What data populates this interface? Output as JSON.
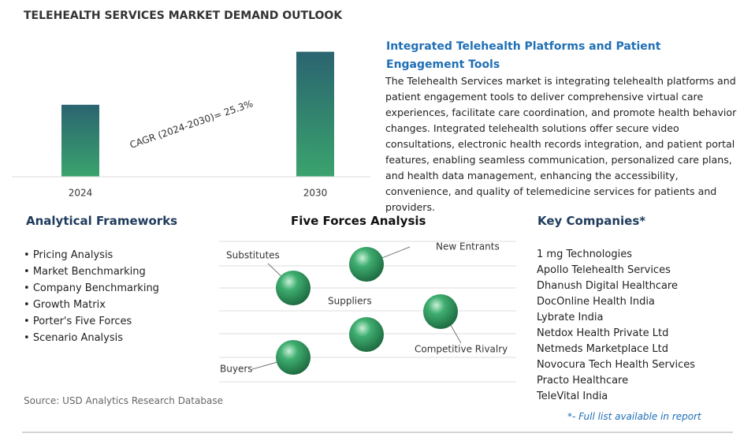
{
  "header": {
    "title": "TELEHEALTH SERVICES MARKET DEMAND OUTLOOK"
  },
  "chart_data": {
    "type": "bar",
    "categories": [
      "2024",
      "2030"
    ],
    "values": [
      57,
      99
    ],
    "ylim": [
      0,
      100
    ],
    "annotation": "CAGR (2024-2030)=  25.3%"
  },
  "highlight": {
    "heading": "Integrated Telehealth Platforms and Patient Engagement Tools",
    "text": "The Telehealth Services market is integrating telehealth platforms and patient engagement tools to deliver comprehensive virtual care experiences, facilitate care coordination, and promote health behavior changes. Integrated telehealth solutions offer secure video consultations, electronic health records integration, and patient portal features, enabling seamless communication, personalized care plans, and health data management, enhancing the accessibility, convenience, and quality of telemedicine services for patients and providers."
  },
  "frameworks": {
    "heading": "Analytical Frameworks",
    "items": [
      "Pricing Analysis",
      "Market Benchmarking",
      "Company Benchmarking",
      "Growth Matrix",
      "Porter's Five Forces",
      "Scenario Analysis"
    ]
  },
  "five_forces": {
    "heading": "Five Forces Analysis",
    "substitutes": "Substitutes",
    "new_entrants": "New Entrants",
    "suppliers": "Suppliers",
    "rivalry": "Competitive Rivalry",
    "buyers": "Buyers"
  },
  "companies": {
    "heading": "Key Companies*",
    "items": [
      "1 mg Technologies",
      "Apollo Telehealth Services",
      "Dhanush Digital Healthcare",
      "DocOnline Health India",
      "Lybrate India",
      "Netdox Health Private Ltd",
      "Netmeds Marketplace Ltd",
      "Novocura Tech Health Services",
      "Practo Healthcare",
      "TeleVital India"
    ],
    "note": "*- Full list available in report"
  },
  "source": "Source: USD Analytics Research Database"
}
